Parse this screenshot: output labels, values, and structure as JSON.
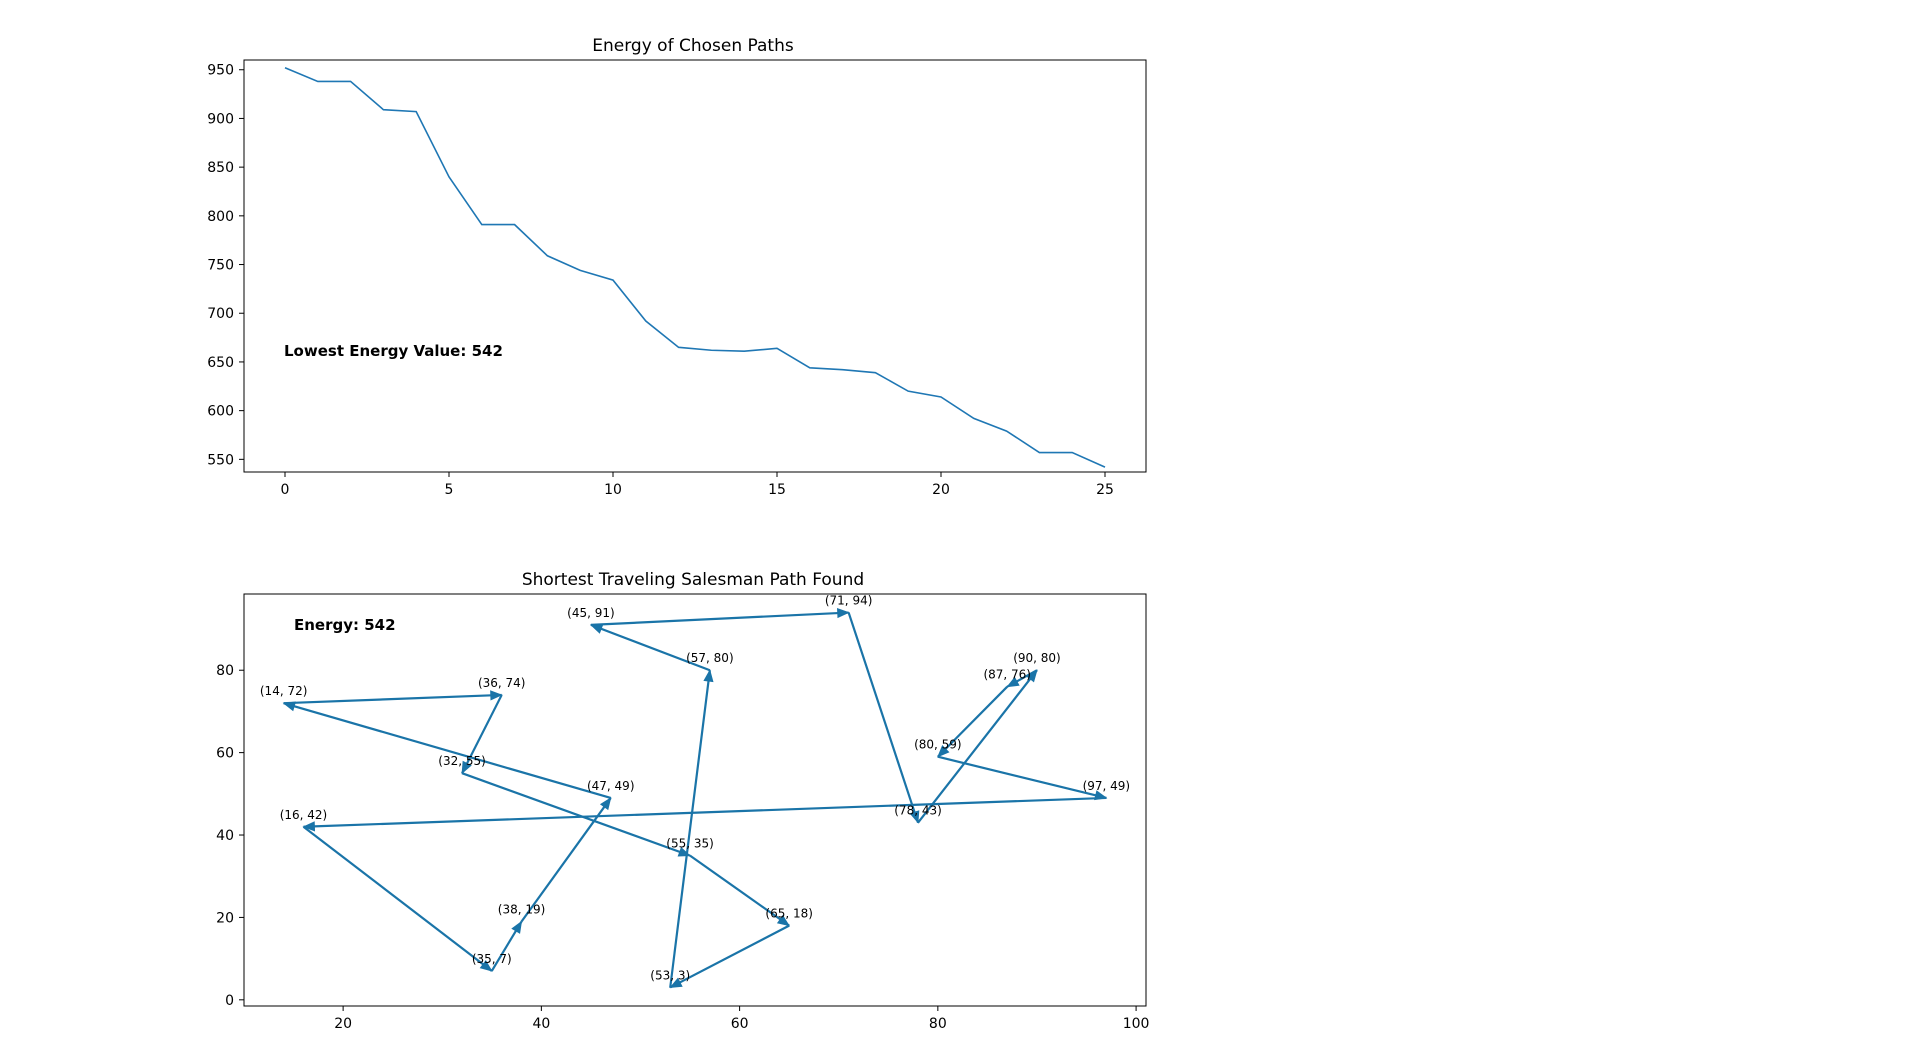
{
  "chart_data": [
    {
      "type": "line",
      "title": "Energy of Chosen Paths",
      "xlabel": "",
      "ylabel": "",
      "xlim": [
        -1.25,
        26.25
      ],
      "ylim": [
        537,
        960
      ],
      "xticks": [
        0,
        5,
        10,
        15,
        20,
        25
      ],
      "yticks": [
        550,
        600,
        650,
        700,
        750,
        800,
        850,
        900,
        950
      ],
      "grid": false,
      "color": "#1f77b4",
      "annotation": "Lowest Energy Value: 542",
      "x": [
        0,
        1,
        2,
        3,
        4,
        5,
        6,
        7,
        8,
        9,
        10,
        11,
        12,
        13,
        14,
        15,
        16,
        17,
        18,
        19,
        20,
        21,
        22,
        23,
        24,
        25
      ],
      "values": [
        952,
        938,
        938,
        909,
        907,
        840,
        791,
        791,
        759,
        744,
        734,
        692,
        665,
        662,
        661,
        664,
        644,
        642,
        639,
        620,
        614,
        592,
        579,
        557,
        557,
        542
      ]
    },
    {
      "type": "line",
      "title": "Shortest Traveling Salesman Path Found",
      "xlabel": "",
      "ylabel": "",
      "xlim": [
        10,
        101
      ],
      "ylim": [
        -1.5,
        98.5
      ],
      "xticks": [
        20,
        40,
        60,
        80,
        100
      ],
      "yticks": [
        0,
        20,
        40,
        60,
        80
      ],
      "grid": false,
      "color": "#1a74a8",
      "annotation": "Energy: 542",
      "points": [
        {
          "x": 45,
          "y": 91,
          "label": "(45, 91)"
        },
        {
          "x": 71,
          "y": 94,
          "label": "(71, 94)"
        },
        {
          "x": 57,
          "y": 80,
          "label": "(57, 80)"
        },
        {
          "x": 90,
          "y": 80,
          "label": "(90, 80)"
        },
        {
          "x": 87,
          "y": 76,
          "label": "(87, 76)"
        },
        {
          "x": 14,
          "y": 72,
          "label": "(14, 72)"
        },
        {
          "x": 36,
          "y": 74,
          "label": "(36, 74)"
        },
        {
          "x": 80,
          "y": 59,
          "label": "(80, 59)"
        },
        {
          "x": 32,
          "y": 55,
          "label": "(32, 55)"
        },
        {
          "x": 47,
          "y": 49,
          "label": "(47, 49)"
        },
        {
          "x": 97,
          "y": 49,
          "label": "(97, 49)"
        },
        {
          "x": 16,
          "y": 42,
          "label": "(16, 42)"
        },
        {
          "x": 78,
          "y": 43,
          "label": "(78, 43)"
        },
        {
          "x": 55,
          "y": 35,
          "label": "(55, 35)"
        },
        {
          "x": 38,
          "y": 19,
          "label": "(38, 19)"
        },
        {
          "x": 65,
          "y": 18,
          "label": "(65, 18)"
        },
        {
          "x": 35,
          "y": 7,
          "label": "(35, 7)"
        },
        {
          "x": 53,
          "y": 3,
          "label": "(53, 3)"
        }
      ],
      "path_order": [
        [
          57,
          80
        ],
        [
          45,
          91
        ],
        [
          71,
          94
        ],
        [
          78,
          43
        ],
        [
          90,
          80
        ],
        [
          87,
          76
        ],
        [
          80,
          59
        ],
        [
          97,
          49
        ],
        [
          16,
          42
        ],
        [
          35,
          7
        ],
        [
          38,
          19
        ],
        [
          47,
          49
        ],
        [
          14,
          72
        ],
        [
          36,
          74
        ],
        [
          32,
          55
        ],
        [
          55,
          35
        ],
        [
          65,
          18
        ],
        [
          53,
          3
        ],
        [
          57,
          80
        ]
      ]
    }
  ]
}
